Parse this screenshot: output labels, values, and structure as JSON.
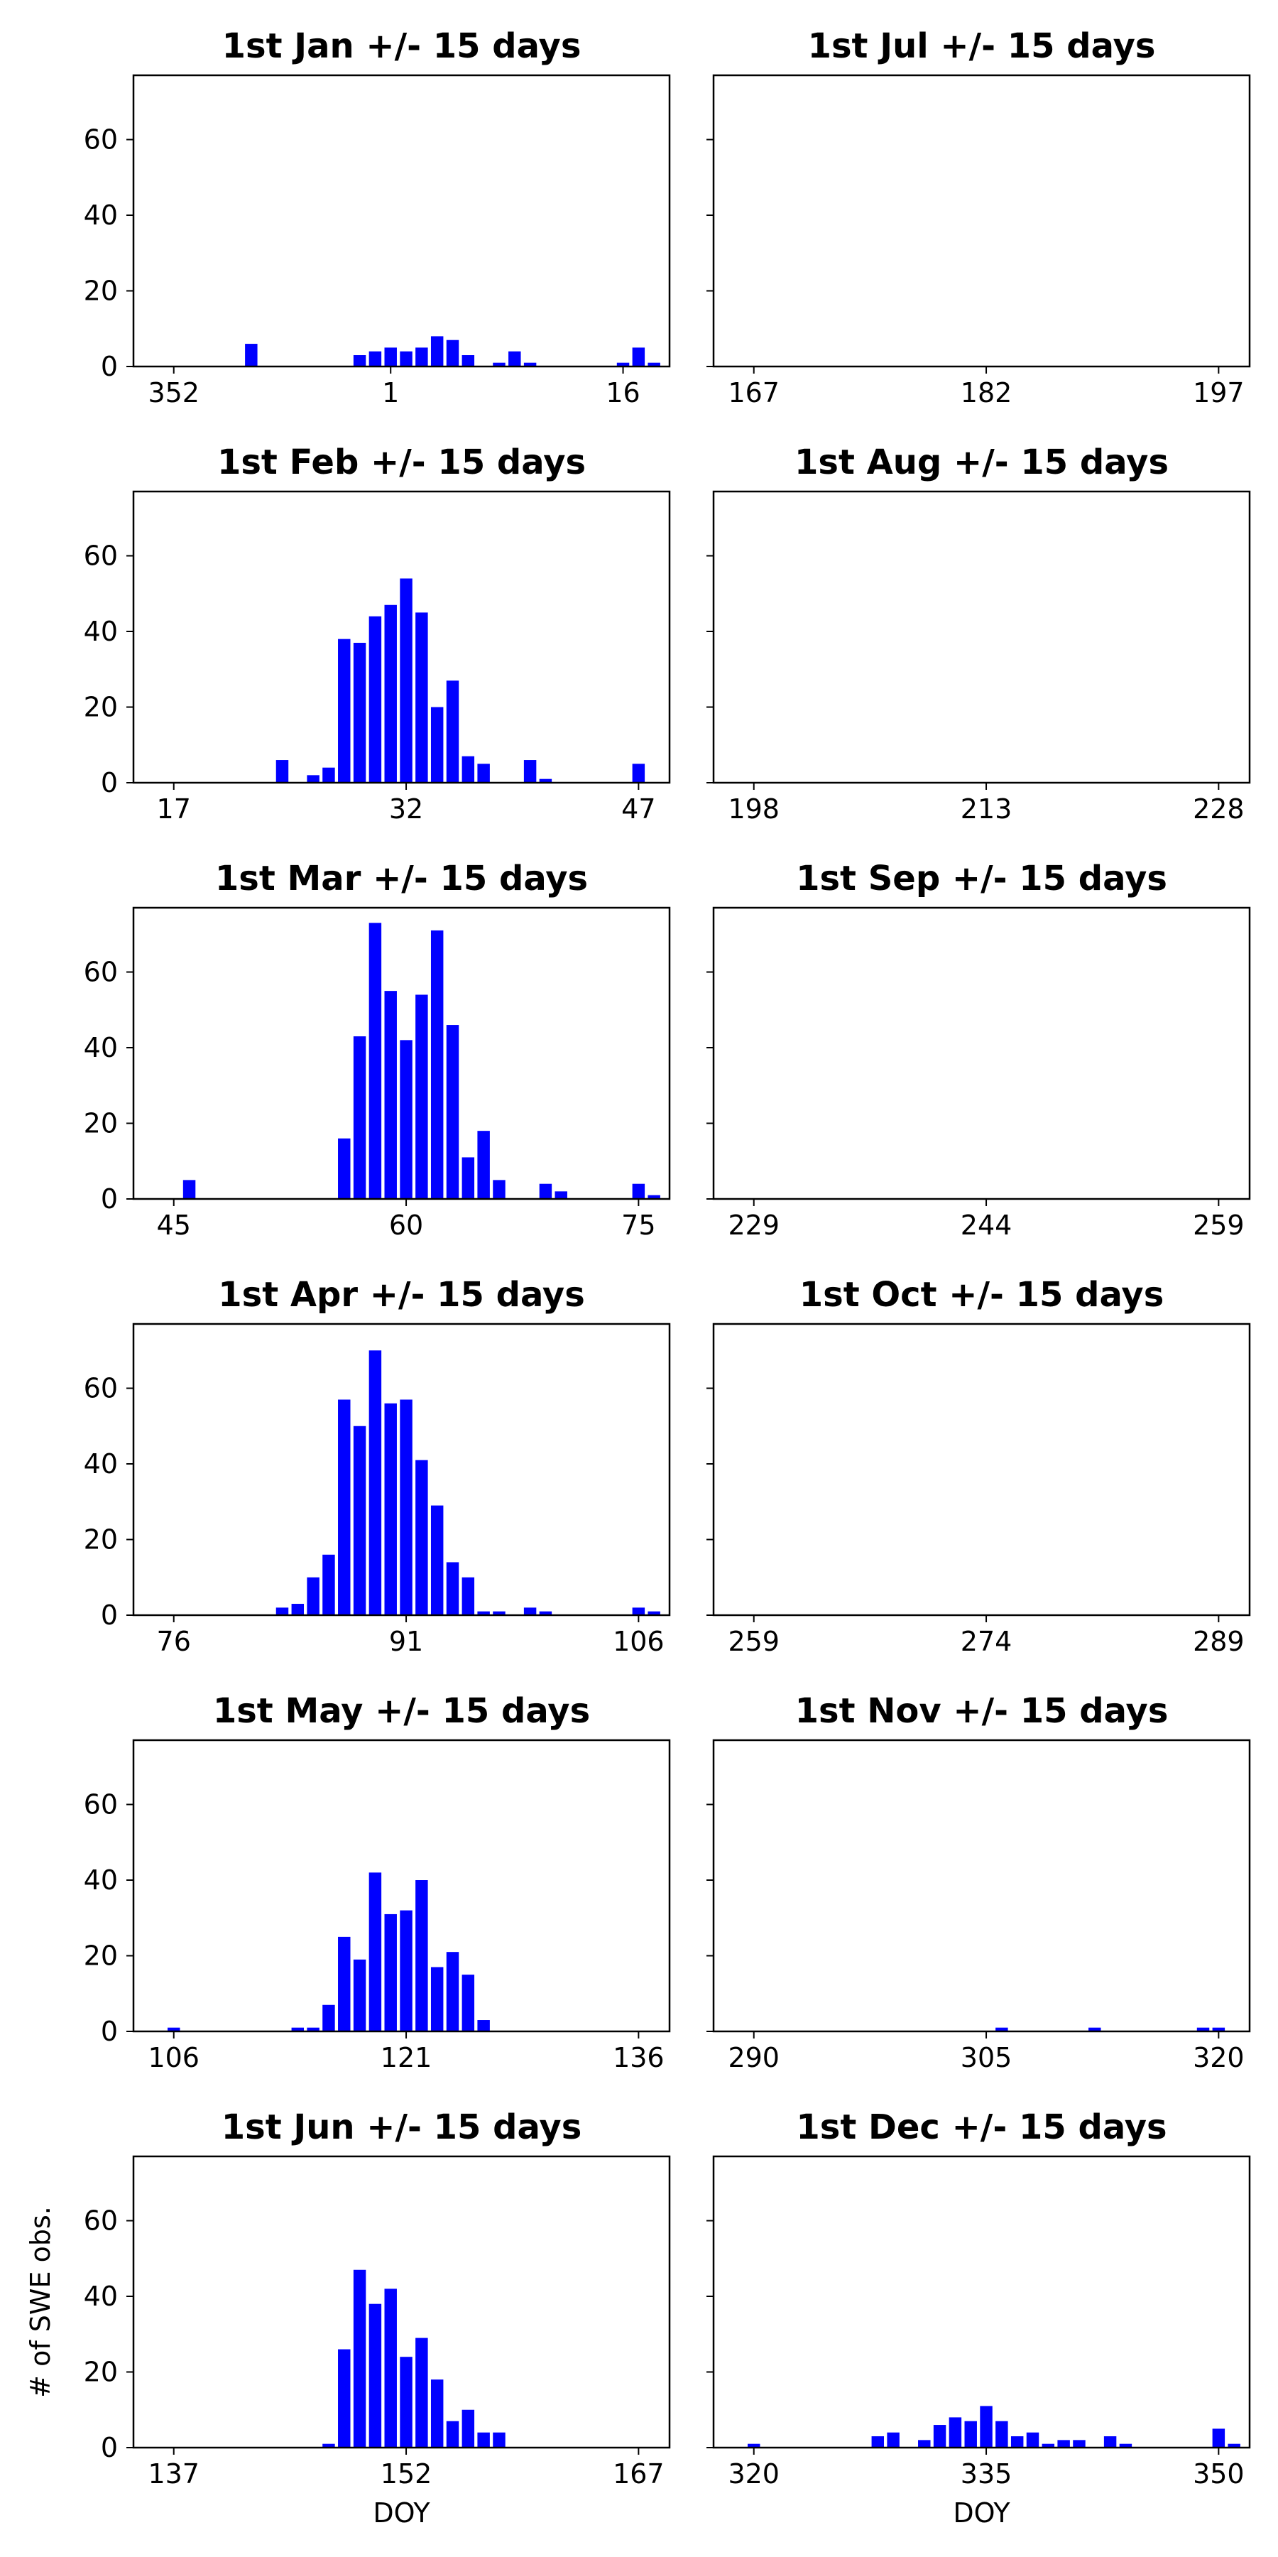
{
  "bar_color": "#0000ff",
  "chart_data": [
    {
      "type": "bar",
      "title": "1st Jan +/- 15 days",
      "xlabel": "",
      "ylabel": "",
      "x_start": 351,
      "x_ticks": [
        352,
        1,
        16
      ],
      "values": [
        0,
        0,
        0,
        0,
        0,
        0,
        6,
        0,
        0,
        0,
        0,
        0,
        0,
        3,
        4,
        5,
        4,
        5,
        8,
        7,
        3,
        0,
        1,
        4,
        1,
        0,
        0,
        0,
        0,
        0,
        1,
        5,
        1
      ],
      "ylim": [
        0,
        77
      ],
      "y_ticks": [
        0,
        20,
        40,
        60
      ]
    },
    {
      "type": "bar",
      "title": "1st Jul +/- 15 days",
      "xlabel": "",
      "ylabel": "",
      "x_start": 166,
      "x_ticks": [
        167,
        182,
        197
      ],
      "values": [
        0,
        0,
        0,
        0,
        0,
        0,
        0,
        0,
        0,
        0,
        0,
        0,
        0,
        0,
        0,
        0,
        0,
        0,
        0,
        0,
        0,
        0,
        0,
        0,
        0,
        0,
        0,
        0,
        0,
        0,
        0,
        0,
        0
      ],
      "ylim": [
        0,
        77
      ],
      "y_ticks": [
        0,
        20,
        40,
        60
      ]
    },
    {
      "type": "bar",
      "title": "1st Feb +/- 15 days",
      "xlabel": "",
      "ylabel": "",
      "x_start": 16,
      "x_ticks": [
        17,
        32,
        47
      ],
      "values": [
        0,
        0,
        0,
        0,
        0,
        0,
        0,
        0,
        6,
        0,
        2,
        4,
        38,
        37,
        44,
        47,
        54,
        45,
        20,
        27,
        7,
        5,
        0,
        0,
        6,
        1,
        0,
        0,
        0,
        0,
        0,
        5,
        0
      ],
      "ylim": [
        0,
        77
      ],
      "y_ticks": [
        0,
        20,
        40,
        60
      ]
    },
    {
      "type": "bar",
      "title": "1st Aug +/- 15 days",
      "xlabel": "",
      "ylabel": "",
      "x_start": 197,
      "x_ticks": [
        198,
        213,
        228
      ],
      "values": [
        0,
        0,
        0,
        0,
        0,
        0,
        0,
        0,
        0,
        0,
        0,
        0,
        0,
        0,
        0,
        0,
        0,
        0,
        0,
        0,
        0,
        0,
        0,
        0,
        0,
        0,
        0,
        0,
        0,
        0,
        0,
        0,
        0
      ],
      "ylim": [
        0,
        77
      ],
      "y_ticks": [
        0,
        20,
        40,
        60
      ]
    },
    {
      "type": "bar",
      "title": "1st Mar +/- 15 days",
      "xlabel": "",
      "ylabel": "",
      "x_start": 44,
      "x_ticks": [
        45,
        60,
        75
      ],
      "values": [
        0,
        0,
        5,
        0,
        0,
        0,
        0,
        0,
        0,
        0,
        0,
        0,
        16,
        43,
        73,
        55,
        42,
        54,
        71,
        46,
        11,
        18,
        5,
        0,
        0,
        4,
        2,
        0,
        0,
        0,
        0,
        4,
        1
      ],
      "ylim": [
        0,
        77
      ],
      "y_ticks": [
        0,
        20,
        40,
        60
      ]
    },
    {
      "type": "bar",
      "title": "1st Sep +/- 15 days",
      "xlabel": "",
      "ylabel": "",
      "x_start": 228,
      "x_ticks": [
        229,
        244,
        259
      ],
      "values": [
        0,
        0,
        0,
        0,
        0,
        0,
        0,
        0,
        0,
        0,
        0,
        0,
        0,
        0,
        0,
        0,
        0,
        0,
        0,
        0,
        0,
        0,
        0,
        0,
        0,
        0,
        0,
        0,
        0,
        0,
        0,
        0,
        0
      ],
      "ylim": [
        0,
        77
      ],
      "y_ticks": [
        0,
        20,
        40,
        60
      ]
    },
    {
      "type": "bar",
      "title": "1st Apr +/- 15 days",
      "xlabel": "",
      "ylabel": "",
      "x_start": 75,
      "x_ticks": [
        76,
        91,
        106
      ],
      "values": [
        0,
        0,
        0,
        0,
        0,
        0,
        0,
        0,
        2,
        3,
        10,
        16,
        57,
        50,
        70,
        56,
        57,
        41,
        29,
        14,
        10,
        1,
        1,
        0,
        2,
        1,
        0,
        0,
        0,
        0,
        0,
        2,
        1
      ],
      "ylim": [
        0,
        77
      ],
      "y_ticks": [
        0,
        20,
        40,
        60
      ]
    },
    {
      "type": "bar",
      "title": "1st Oct +/- 15 days",
      "xlabel": "",
      "ylabel": "",
      "x_start": 258,
      "x_ticks": [
        259,
        274,
        289
      ],
      "values": [
        0,
        0,
        0,
        0,
        0,
        0,
        0,
        0,
        0,
        0,
        0,
        0,
        0,
        0,
        0,
        0,
        0,
        0,
        0,
        0,
        0,
        0,
        0,
        0,
        0,
        0,
        0,
        0,
        0,
        0,
        0,
        0,
        0
      ],
      "ylim": [
        0,
        77
      ],
      "y_ticks": [
        0,
        20,
        40,
        60
      ]
    },
    {
      "type": "bar",
      "title": "1st May +/- 15 days",
      "xlabel": "",
      "ylabel": "",
      "x_start": 105,
      "x_ticks": [
        106,
        121,
        136
      ],
      "values": [
        0,
        1,
        0,
        0,
        0,
        0,
        0,
        0,
        0,
        1,
        1,
        7,
        25,
        19,
        42,
        31,
        32,
        40,
        17,
        21,
        15,
        3,
        0,
        0,
        0,
        0,
        0,
        0,
        0,
        0,
        0,
        0,
        0
      ],
      "ylim": [
        0,
        77
      ],
      "y_ticks": [
        0,
        20,
        40,
        60
      ]
    },
    {
      "type": "bar",
      "title": "1st Nov +/- 15 days",
      "xlabel": "",
      "ylabel": "",
      "x_start": 289,
      "x_ticks": [
        290,
        305,
        320
      ],
      "values": [
        0,
        0,
        0,
        0,
        0,
        0,
        0,
        0,
        0,
        0,
        0,
        0,
        0,
        0,
        0,
        0,
        0,
        1,
        0,
        0,
        0,
        0,
        0,
        1,
        0,
        0,
        0,
        0,
        0,
        0,
        1,
        1,
        0
      ],
      "ylim": [
        0,
        77
      ],
      "y_ticks": [
        0,
        20,
        40,
        60
      ]
    },
    {
      "type": "bar",
      "title": "1st Jun +/- 15 days",
      "xlabel": "DOY",
      "ylabel": "# of SWE obs.",
      "x_start": 136,
      "x_ticks": [
        137,
        152,
        167
      ],
      "values": [
        0,
        0,
        0,
        0,
        0,
        0,
        0,
        0,
        0,
        0,
        0,
        1,
        26,
        47,
        38,
        42,
        24,
        29,
        18,
        7,
        10,
        4,
        4,
        0,
        0,
        0,
        0,
        0,
        0,
        0,
        0,
        0,
        0
      ],
      "ylim": [
        0,
        77
      ],
      "y_ticks": [
        0,
        20,
        40,
        60
      ]
    },
    {
      "type": "bar",
      "title": "1st Dec +/- 15 days",
      "xlabel": "DOY",
      "ylabel": "",
      "x_start": 319,
      "x_ticks": [
        320,
        335,
        350
      ],
      "values": [
        0,
        1,
        0,
        0,
        0,
        0,
        0,
        0,
        0,
        3,
        4,
        0,
        2,
        6,
        8,
        7,
        11,
        7,
        3,
        4,
        1,
        2,
        2,
        0,
        3,
        1,
        0,
        0,
        0,
        0,
        0,
        5,
        1
      ],
      "ylim": [
        0,
        77
      ],
      "y_ticks": [
        0,
        20,
        40,
        60
      ]
    }
  ]
}
